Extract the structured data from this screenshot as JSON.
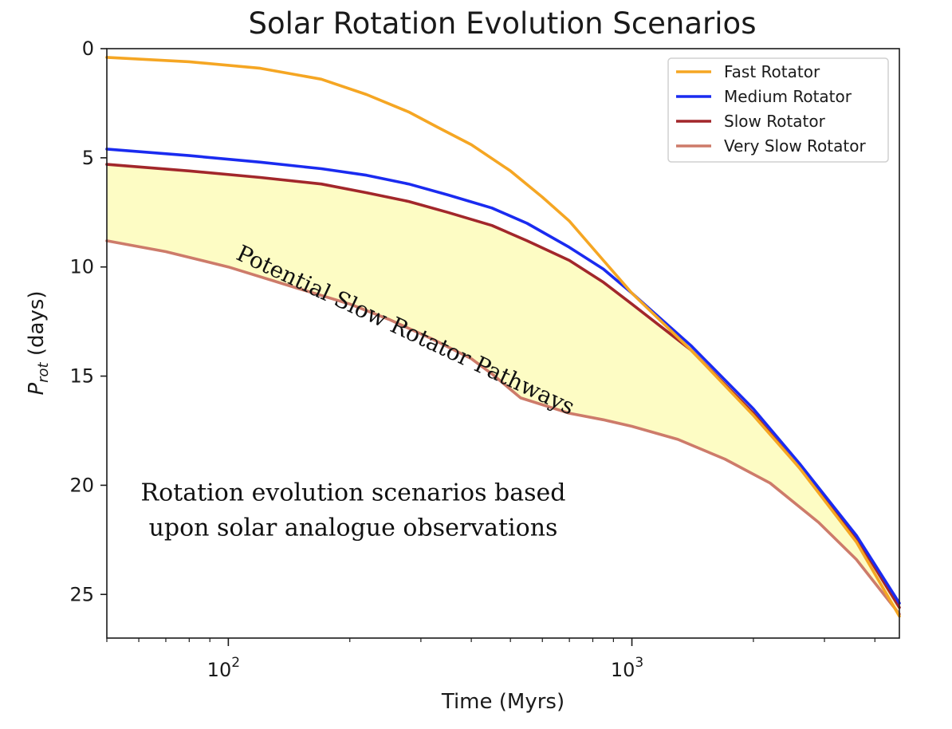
{
  "chart_data": {
    "type": "line",
    "title": "Solar Rotation Evolution Scenarios",
    "xlabel": "Time (Myrs)",
    "ylabel": "P_rot (days)",
    "ylabel_main": "P",
    "ylabel_sub": "rot",
    "ylabel_suffix": " (days)",
    "xscale": "log",
    "xlim": [
      50,
      4600
    ],
    "ylim": [
      27,
      0
    ],
    "x_major_ticks": [
      100,
      1000
    ],
    "x_major_tick_labels": [
      "10",
      "10"
    ],
    "x_major_tick_exponents": [
      "2",
      "3"
    ],
    "y_ticks": [
      0,
      5,
      10,
      15,
      20,
      25
    ],
    "y_tick_labels": [
      "0",
      "5",
      "10",
      "15",
      "20",
      "25"
    ],
    "legend_position": "upper right",
    "series": [
      {
        "name": "Fast Rotator",
        "color": "#f5a623",
        "x": [
          50,
          80,
          120,
          170,
          220,
          280,
          330,
          400,
          500,
          600,
          700,
          850,
          1000,
          1400,
          2000,
          2600,
          3600,
          4600
        ],
        "values": [
          0.4,
          0.6,
          0.9,
          1.4,
          2.1,
          2.9,
          3.6,
          4.4,
          5.6,
          6.8,
          7.9,
          9.7,
          11.2,
          13.8,
          16.8,
          19.2,
          22.6,
          26.0
        ]
      },
      {
        "name": "Medium Rotator",
        "color": "#1a2bf0",
        "x": [
          50,
          80,
          120,
          170,
          220,
          280,
          350,
          450,
          550,
          700,
          850,
          1000,
          1400,
          2000,
          2600,
          3600,
          4600
        ],
        "values": [
          4.6,
          4.9,
          5.2,
          5.5,
          5.8,
          6.2,
          6.7,
          7.3,
          8.0,
          9.1,
          10.1,
          11.2,
          13.6,
          16.5,
          19.0,
          22.3,
          25.4
        ]
      },
      {
        "name": "Slow Rotator",
        "color": "#a2272b",
        "x": [
          50,
          80,
          120,
          170,
          220,
          280,
          350,
          450,
          550,
          700,
          850,
          1000,
          1400,
          2000,
          2600,
          3600,
          4600
        ],
        "values": [
          5.3,
          5.6,
          5.9,
          6.2,
          6.6,
          7.0,
          7.5,
          8.1,
          8.8,
          9.7,
          10.7,
          11.7,
          13.8,
          16.7,
          19.2,
          22.4,
          25.6
        ]
      },
      {
        "name": "Very Slow Rotator",
        "color": "#cd7b6a",
        "x": [
          50,
          70,
          100,
          150,
          200,
          250,
          320,
          400,
          450,
          530,
          700,
          850,
          1000,
          1300,
          1700,
          2200,
          2900,
          3600,
          4600
        ],
        "values": [
          8.8,
          9.3,
          10.0,
          11.0,
          11.7,
          12.4,
          13.3,
          14.2,
          14.9,
          16.0,
          16.7,
          17.0,
          17.3,
          17.9,
          18.8,
          19.9,
          21.7,
          23.4,
          25.9
        ]
      }
    ],
    "fill_between": {
      "upper": "Slow Rotator",
      "lower": "Very Slow Rotator",
      "color": "#fdfcc4"
    },
    "annotations": [
      {
        "text": "Potential Slow Rotator Pathways",
        "x": 270,
        "y": 13.2,
        "rotation_deg": 25
      },
      {
        "text": "Rotation evolution scenarios based",
        "x": 160,
        "y": 20.7
      },
      {
        "text": "upon solar analogue observations",
        "x": 160,
        "y": 22.3
      }
    ]
  }
}
